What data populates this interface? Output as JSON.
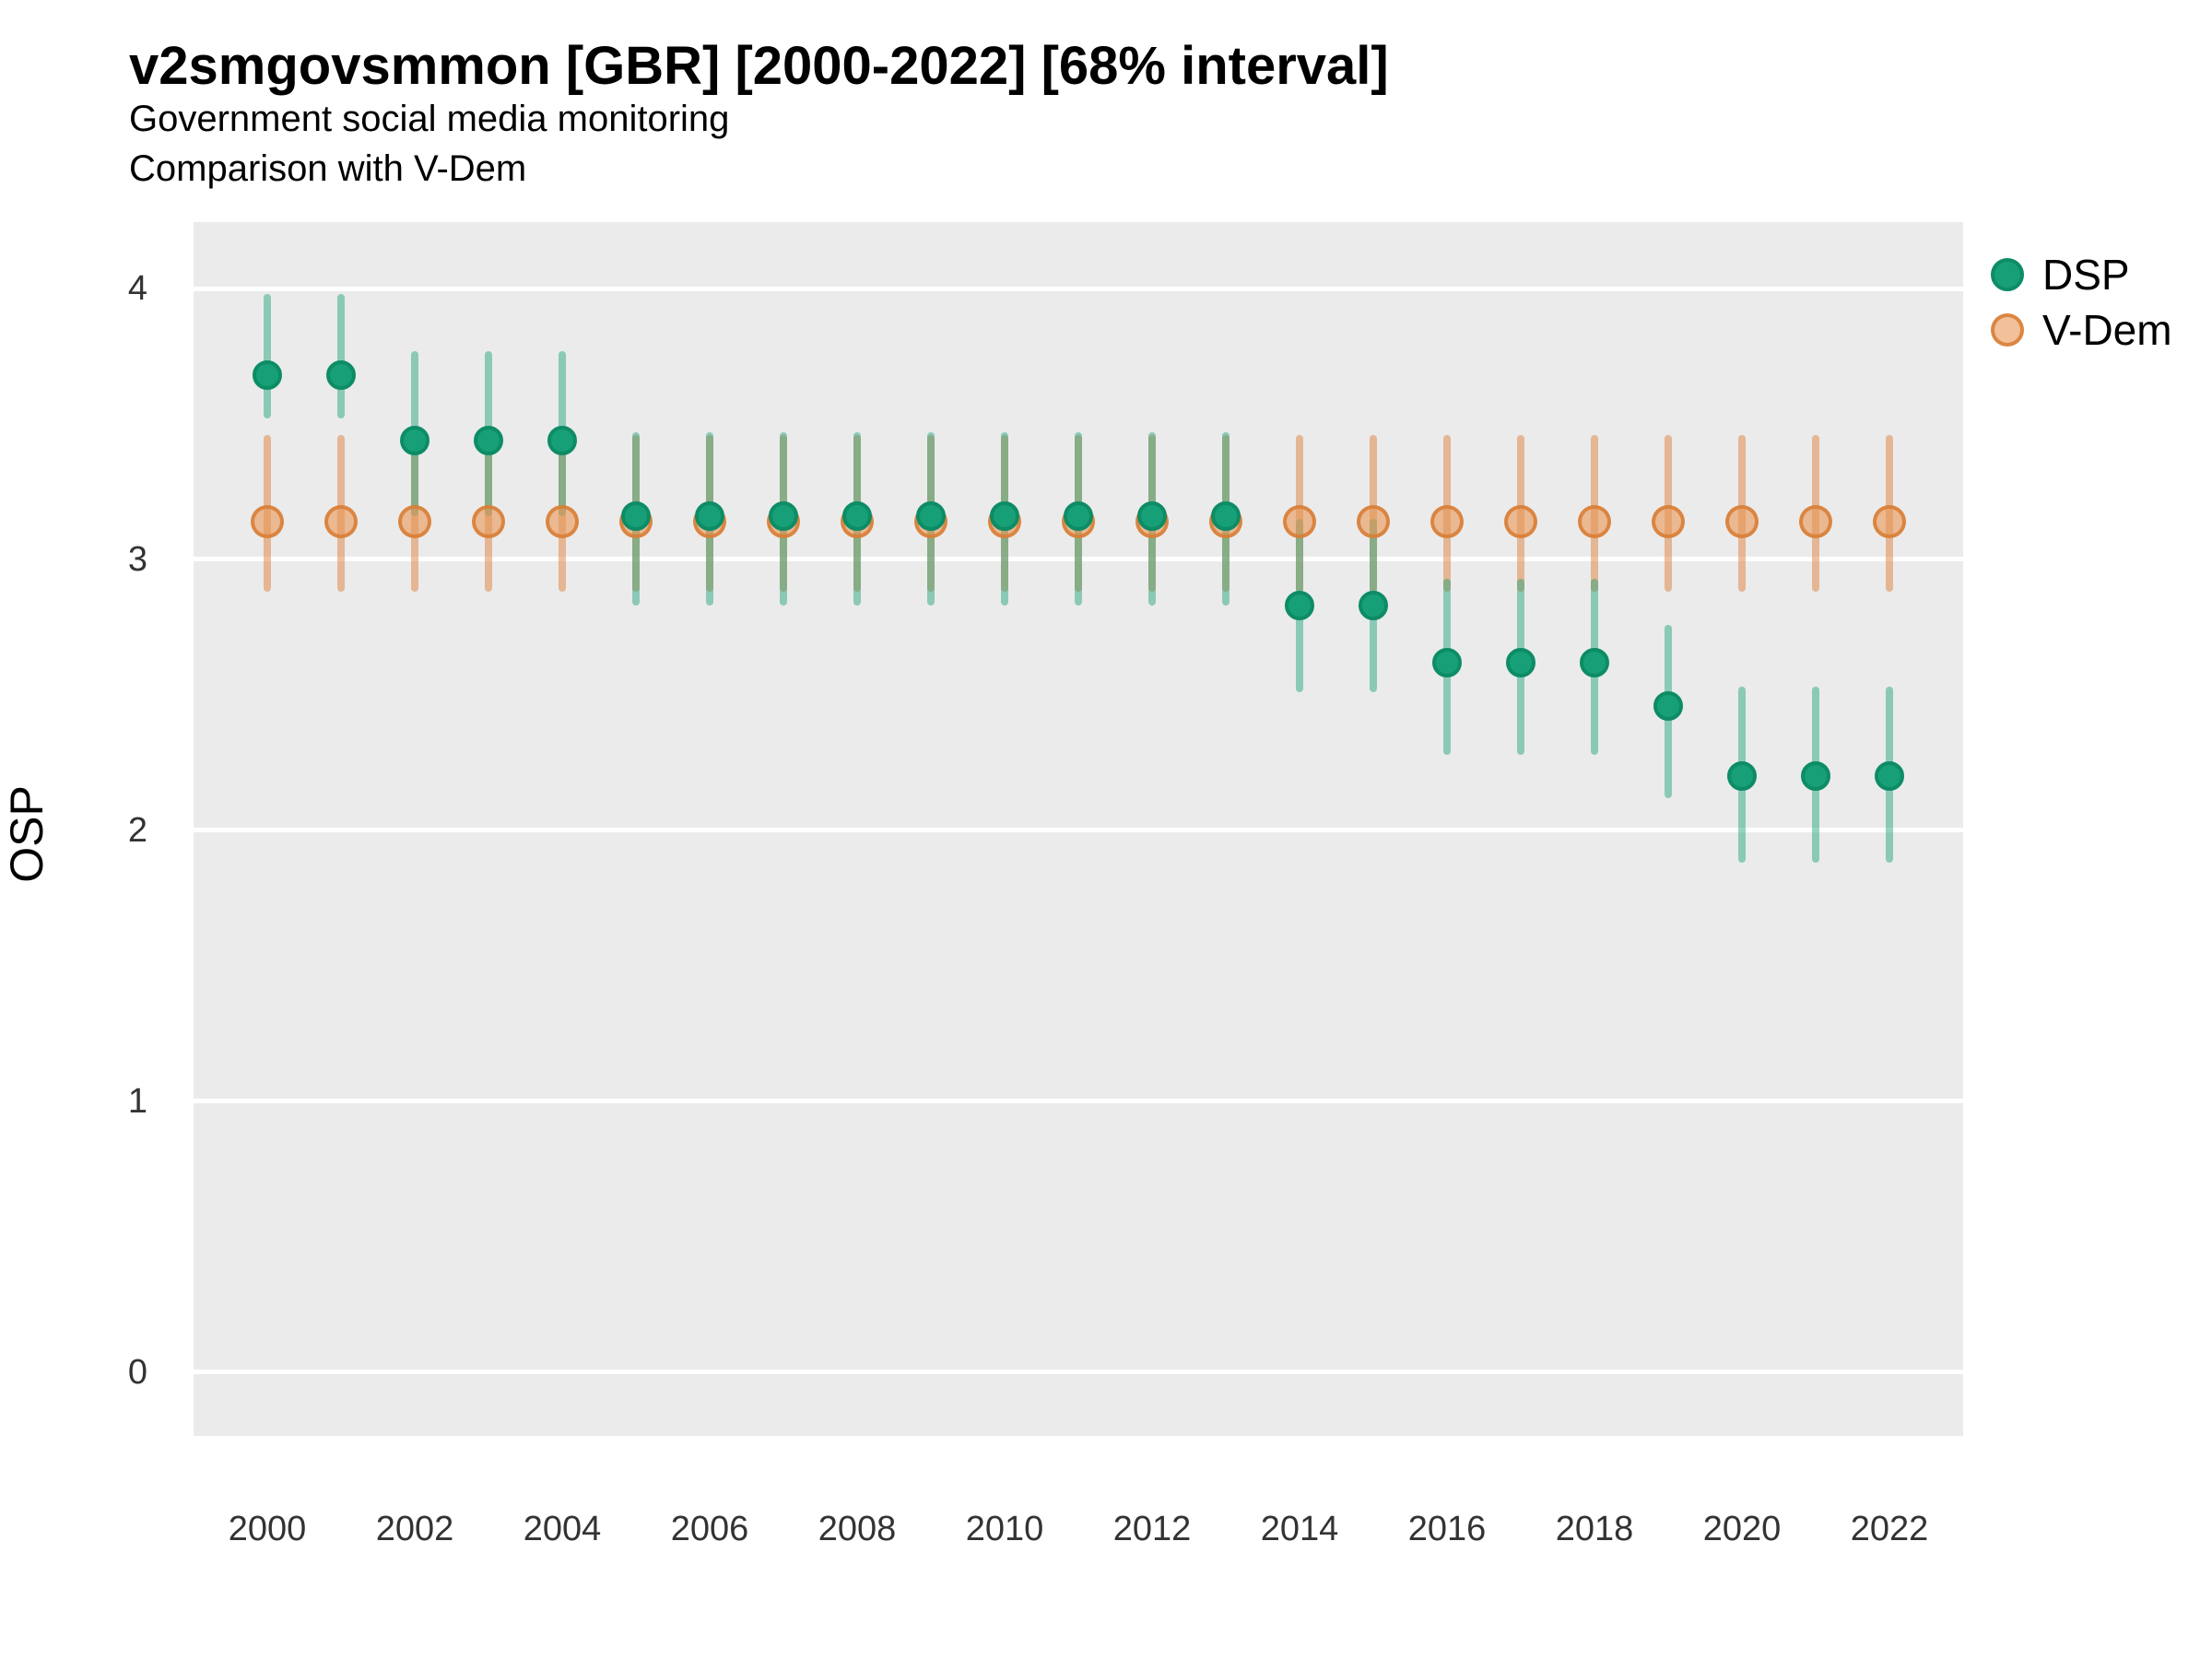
{
  "header": {
    "title": "v2smgovsmmon [GBR] [2000-2022] [68% interval]",
    "subtitle_line1": "Government social media monitoring",
    "subtitle_line2": "Comparison with V-Dem"
  },
  "colors": {
    "panel_background": "#EBEBEB",
    "gridline": "#FFFFFF",
    "dsp_point_fill": "#17A077",
    "dsp_point_stroke": "#0D8C65",
    "dsp_interval": "rgba(23,160,119,0.45)",
    "vdem_point_fill": "rgba(233,150,85,0.60)",
    "vdem_point_stroke": "rgba(215,125,52,0.85)",
    "vdem_interval": "rgba(221,130,60,0.50)",
    "tick_text": "#333333"
  },
  "chart_data": {
    "type": "scatter",
    "title": "v2smgovsmmon [GBR] [2000-2022] [68% interval]",
    "subtitle": [
      "Government social media monitoring",
      "Comparison with V-Dem"
    ],
    "xlabel": "",
    "ylabel": "OSP",
    "interval_label": "68% interval",
    "xlim": [
      1999,
      2023
    ],
    "ylim": [
      -0.235,
      4.245
    ],
    "x_ticks": [
      2000,
      2002,
      2004,
      2006,
      2008,
      2010,
      2012,
      2014,
      2016,
      2018,
      2020,
      2022
    ],
    "y_ticks": [
      0,
      1,
      2,
      3,
      4
    ],
    "grid": "major horizontal white lines on grey panel",
    "legend_position": "right-top",
    "legend": [
      {
        "label": "DSP",
        "color": "#17A077"
      },
      {
        "label": "V-Dem",
        "color": "#E9965A"
      }
    ],
    "x": [
      2000,
      2001,
      2002,
      2003,
      2004,
      2005,
      2006,
      2007,
      2008,
      2009,
      2010,
      2011,
      2012,
      2013,
      2014,
      2015,
      2016,
      2017,
      2018,
      2019,
      2020,
      2021,
      2022
    ],
    "series": [
      {
        "name": "V-Dem",
        "est": [
          3.14,
          3.14,
          3.14,
          3.14,
          3.14,
          3.14,
          3.14,
          3.14,
          3.14,
          3.14,
          3.14,
          3.14,
          3.14,
          3.14,
          3.14,
          3.14,
          3.14,
          3.14,
          3.14,
          3.14,
          3.14,
          3.14,
          3.14
        ],
        "lo": [
          2.88,
          2.88,
          2.88,
          2.88,
          2.88,
          2.88,
          2.88,
          2.88,
          2.88,
          2.88,
          2.88,
          2.88,
          2.88,
          2.88,
          2.88,
          2.88,
          2.88,
          2.88,
          2.88,
          2.88,
          2.88,
          2.88,
          2.88
        ],
        "hi": [
          3.46,
          3.46,
          3.46,
          3.46,
          3.46,
          3.46,
          3.46,
          3.46,
          3.46,
          3.46,
          3.46,
          3.46,
          3.46,
          3.46,
          3.46,
          3.46,
          3.46,
          3.46,
          3.46,
          3.46,
          3.46,
          3.46,
          3.46
        ]
      },
      {
        "name": "DSP",
        "est": [
          3.68,
          3.68,
          3.44,
          3.44,
          3.44,
          3.16,
          3.16,
          3.16,
          3.16,
          3.16,
          3.16,
          3.16,
          3.16,
          3.16,
          2.83,
          2.83,
          2.62,
          2.62,
          2.62,
          2.46,
          2.2,
          2.2,
          2.2
        ],
        "lo": [
          3.52,
          3.52,
          3.16,
          3.16,
          3.16,
          2.83,
          2.83,
          2.83,
          2.83,
          2.83,
          2.83,
          2.83,
          2.83,
          2.83,
          2.51,
          2.51,
          2.28,
          2.28,
          2.28,
          2.12,
          1.88,
          1.88,
          1.88
        ],
        "hi": [
          3.98,
          3.98,
          3.77,
          3.77,
          3.77,
          3.47,
          3.47,
          3.47,
          3.47,
          3.47,
          3.47,
          3.47,
          3.47,
          3.47,
          3.15,
          3.15,
          2.93,
          2.93,
          2.93,
          2.76,
          2.53,
          2.53,
          2.53
        ]
      }
    ]
  }
}
